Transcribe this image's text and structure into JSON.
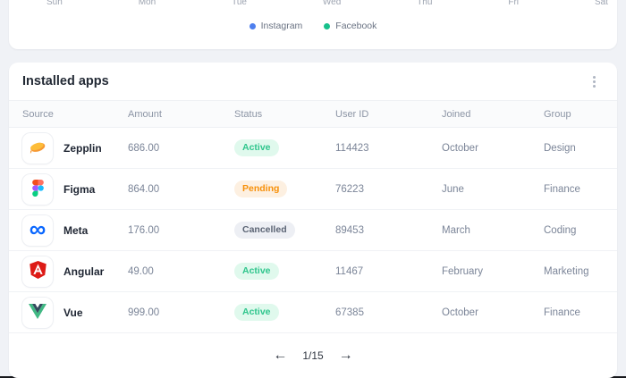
{
  "chart_card": {
    "x_axis_labels": [
      "Sun",
      "Mon",
      "Tue",
      "Wed",
      "Thu",
      "Fri",
      "Sat"
    ],
    "legend": [
      {
        "label": "Instagram",
        "color": "#4E7FEE"
      },
      {
        "label": "Facebook",
        "color": "#17C08B"
      }
    ]
  },
  "installed_apps": {
    "title": "Installed apps",
    "columns": [
      "Source",
      "Amount",
      "Status",
      "User ID",
      "Joined",
      "Group"
    ],
    "rows": [
      {
        "source": "Zepplin",
        "amount": "686.00",
        "status": "Active",
        "user_id": "114423",
        "joined": "October",
        "group": "Design",
        "icon": "zeplin-logo"
      },
      {
        "source": "Figma",
        "amount": "864.00",
        "status": "Pending",
        "user_id": "76223",
        "joined": "June",
        "group": "Finance",
        "icon": "figma-logo"
      },
      {
        "source": "Meta",
        "amount": "176.00",
        "status": "Cancelled",
        "user_id": "89453",
        "joined": "March",
        "group": "Coding",
        "icon": "meta-logo"
      },
      {
        "source": "Angular",
        "amount": "49.00",
        "status": "Active",
        "user_id": "11467",
        "joined": "February",
        "group": "Marketing",
        "icon": "angular-logo"
      },
      {
        "source": "Vue",
        "amount": "999.00",
        "status": "Active",
        "user_id": "67385",
        "joined": "October",
        "group": "Finance",
        "icon": "vue-logo"
      }
    ],
    "status_styles": {
      "Active": {
        "bg": "#E0F9ED",
        "color": "#2EC58C"
      },
      "Pending": {
        "bg": "#FDF0E1",
        "color": "#F79009"
      },
      "Cancelled": {
        "bg": "#EDEFF4",
        "color": "#5B6474"
      }
    },
    "pagination": {
      "prev": "←",
      "current": "1/15",
      "next": "→"
    }
  }
}
